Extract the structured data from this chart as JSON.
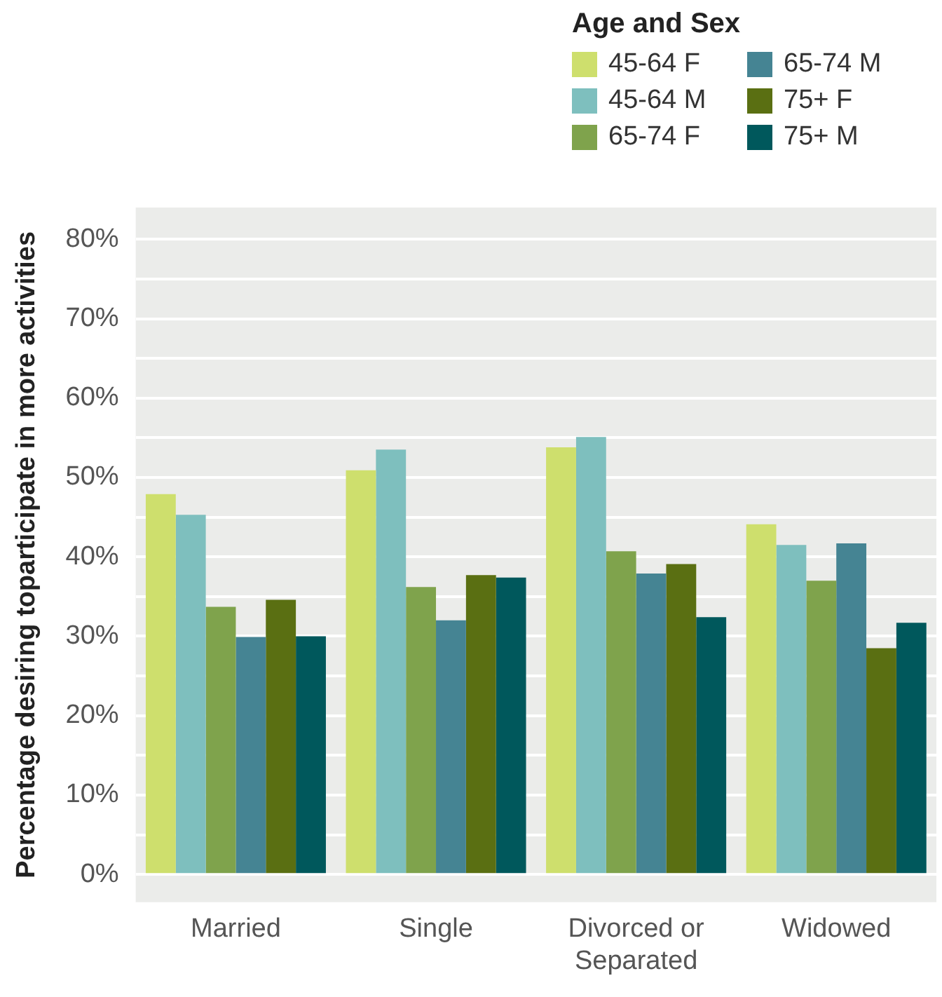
{
  "chart_data": {
    "type": "bar",
    "ylabel": "Percentage desiring toparticipate in more activities",
    "legend_title": "Age and Sex",
    "categories": [
      "Married",
      "Single",
      "Divorced or Separated",
      "Widowed"
    ],
    "series": [
      {
        "name": "45-64 F",
        "color": "#cedf6d",
        "values": [
          47.9,
          50.9,
          53.8,
          44.1
        ]
      },
      {
        "name": "45-64 M",
        "color": "#7ebfbe",
        "values": [
          45.3,
          53.5,
          55.1,
          41.5
        ]
      },
      {
        "name": "65-74 F",
        "color": "#7fa34c",
        "values": [
          33.7,
          36.2,
          40.7,
          37.0
        ]
      },
      {
        "name": "65-74 M",
        "color": "#458493",
        "values": [
          29.9,
          32.0,
          37.9,
          41.7
        ]
      },
      {
        "name": "75+ F",
        "color": "#5a6f12",
        "values": [
          34.6,
          37.7,
          39.1,
          28.5
        ]
      },
      {
        "name": "75+ M",
        "color": "#00585c",
        "values": [
          30.0,
          37.4,
          32.4,
          31.7
        ]
      }
    ],
    "ylim": [
      -3.5,
      84
    ],
    "yticks": [
      {
        "value": 0,
        "label": "0%"
      },
      {
        "value": 5,
        "label": null
      },
      {
        "value": 10,
        "label": "10%"
      },
      {
        "value": 15,
        "label": null
      },
      {
        "value": 20,
        "label": "20%"
      },
      {
        "value": 25,
        "label": null
      },
      {
        "value": 30,
        "label": "30%"
      },
      {
        "value": 35,
        "label": null
      },
      {
        "value": 40,
        "label": "40%"
      },
      {
        "value": 45,
        "label": null
      },
      {
        "value": 50,
        "label": "50%"
      },
      {
        "value": 55,
        "label": null
      },
      {
        "value": 60,
        "label": "60%"
      },
      {
        "value": 65,
        "label": null
      },
      {
        "value": 70,
        "label": "70%"
      },
      {
        "value": 75,
        "label": null
      },
      {
        "value": 80,
        "label": "80%"
      }
    ],
    "grid": "y",
    "legend": "top right"
  }
}
